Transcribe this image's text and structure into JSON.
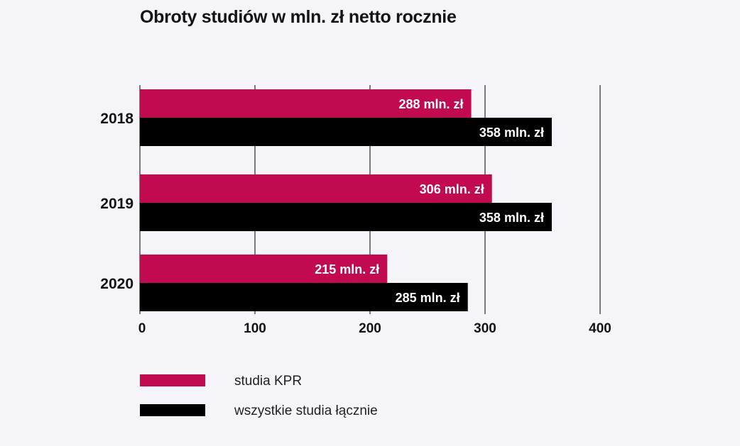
{
  "chart_data": {
    "type": "bar",
    "orientation": "horizontal",
    "title": "Obroty studiów w mln. zł netto rocznie",
    "xlabel": "",
    "ylabel": "",
    "categories": [
      "2018",
      "2019",
      "2020"
    ],
    "series": [
      {
        "name": "studia KPR",
        "color": "#c20a50",
        "values": [
          288,
          306,
          215
        ],
        "labels": [
          "288 mln. zł",
          "306 mln. zł",
          "215 mln. zł"
        ]
      },
      {
        "name": "wszystkie studia łącznie",
        "color": "#000000",
        "values": [
          358,
          358,
          285
        ],
        "labels": [
          "358 mln. zł",
          "358 mln. zł",
          "285 mln. zł"
        ]
      }
    ],
    "xlim": [
      0,
      400
    ],
    "xticks": [
      "0",
      "100",
      "200",
      "300",
      "400"
    ],
    "grid": true,
    "legend_position": "bottom-left"
  }
}
